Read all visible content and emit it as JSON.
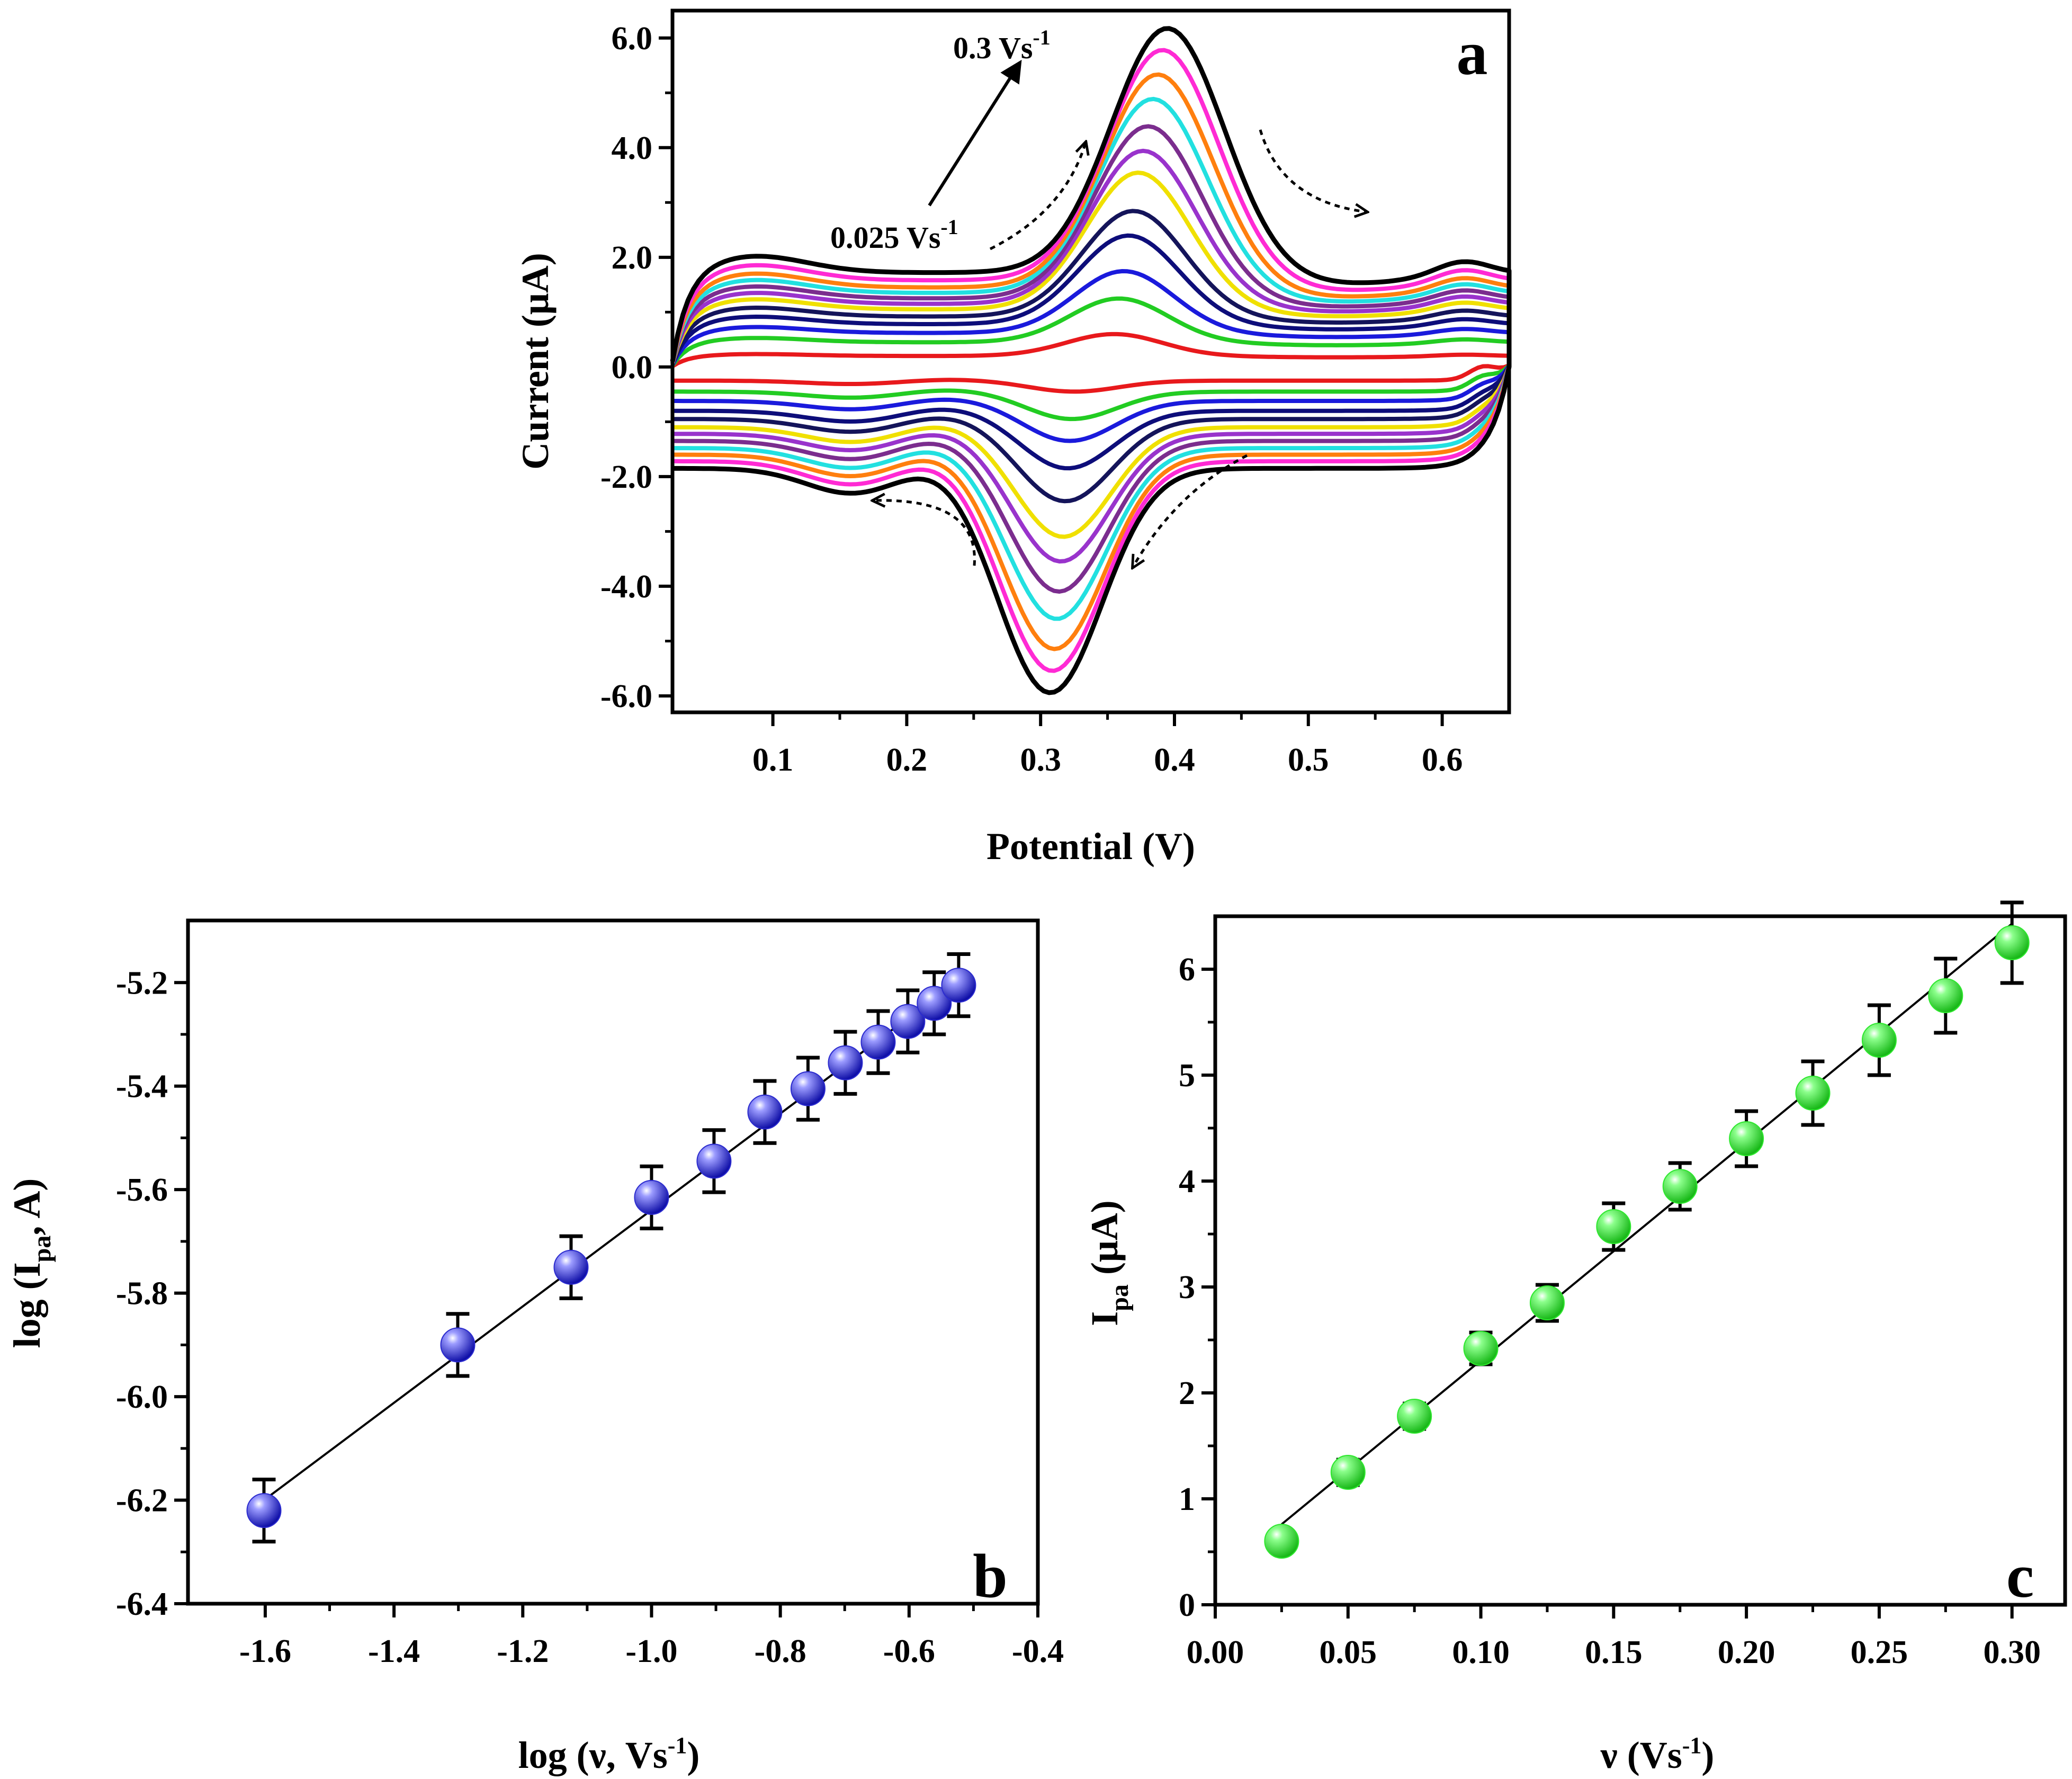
{
  "chart_data": [
    {
      "id": "a",
      "type": "line",
      "panel_label": "a",
      "xlabel": "Potential (V)",
      "ylabel_parts": [
        "Current (",
        "μ",
        "A)"
      ],
      "xlim": [
        0.025,
        0.65
      ],
      "ylim": [
        -6.3,
        6.5
      ],
      "x_ticks": [
        0.1,
        0.2,
        0.3,
        0.4,
        0.5,
        0.6
      ],
      "x_tick_labels": [
        "0.1",
        "0.2",
        "0.3",
        "0.4",
        "0.5",
        "0.6"
      ],
      "y_ticks": [
        -6.0,
        -4.0,
        -2.0,
        0.0,
        2.0,
        4.0,
        6.0
      ],
      "y_tick_labels": [
        "-6.0",
        "-4.0",
        "-2.0",
        "0.0",
        "2.0",
        "4.0",
        "6.0"
      ],
      "annotations": {
        "high_rate": {
          "base": "0.3 Vs",
          "sup": "-1"
        },
        "low_rate": {
          "base": "0.025 Vs",
          "sup": "-1"
        }
      },
      "series": [
        {
          "scan_rate": 0.025,
          "ipa": 0.6,
          "ipc": -0.45,
          "base_ox": 0.2,
          "base_red": -0.25,
          "color": "#e8191c"
        },
        {
          "scan_rate": 0.05,
          "ipa": 1.25,
          "ipc": -0.95,
          "base_ox": 0.45,
          "base_red": -0.45,
          "color": "#22cc22"
        },
        {
          "scan_rate": 0.075,
          "ipa": 1.75,
          "ipc": -1.35,
          "base_ox": 0.62,
          "base_red": -0.62,
          "color": "#1a1adc"
        },
        {
          "scan_rate": 0.1,
          "ipa": 2.4,
          "ipc": -1.85,
          "base_ox": 0.78,
          "base_red": -0.8,
          "color": "#0d0d7a"
        },
        {
          "scan_rate": 0.125,
          "ipa": 2.85,
          "ipc": -2.45,
          "base_ox": 0.92,
          "base_red": -0.95,
          "color": "#14145a"
        },
        {
          "scan_rate": 0.15,
          "ipa": 3.55,
          "ipc": -3.1,
          "base_ox": 1.05,
          "base_red": -1.1,
          "color": "#f0e000"
        },
        {
          "scan_rate": 0.175,
          "ipa": 3.95,
          "ipc": -3.55,
          "base_ox": 1.15,
          "base_red": -1.22,
          "color": "#9933cc"
        },
        {
          "scan_rate": 0.2,
          "ipa": 4.4,
          "ipc": -4.1,
          "base_ox": 1.25,
          "base_red": -1.35,
          "color": "#7b2d8e"
        },
        {
          "scan_rate": 0.225,
          "ipa": 4.9,
          "ipc": -4.6,
          "base_ox": 1.35,
          "base_red": -1.48,
          "color": "#22e0e0"
        },
        {
          "scan_rate": 0.25,
          "ipa": 5.35,
          "ipc": -5.15,
          "base_ox": 1.45,
          "base_red": -1.6,
          "color": "#ff7f0e"
        },
        {
          "scan_rate": 0.275,
          "ipa": 5.8,
          "ipc": -5.55,
          "base_ox": 1.58,
          "base_red": -1.72,
          "color": "#ff2ad4"
        },
        {
          "scan_rate": 0.3,
          "ipa": 6.2,
          "ipc": -5.95,
          "base_ox": 1.72,
          "base_red": -1.85,
          "color": "#000000"
        }
      ]
    },
    {
      "id": "b",
      "type": "scatter",
      "panel_label": "b",
      "xlabel_parts": [
        "log (",
        "ν",
        ", Vs",
        "-1",
        ")"
      ],
      "ylabel_parts": [
        "log (I",
        "pa",
        ", A)"
      ],
      "xlim": [
        -1.72,
        -0.4
      ],
      "ylim": [
        -6.4,
        -5.08
      ],
      "x_ticks": [
        -1.6,
        -1.4,
        -1.2,
        -1.0,
        -0.8,
        -0.6,
        -0.4
      ],
      "x_tick_labels": [
        "-1.6",
        "-1.4",
        "-1.2",
        "-1.0",
        "-0.8",
        "-0.6",
        "-0.4"
      ],
      "y_ticks": [
        -6.4,
        -6.2,
        -6.0,
        -5.8,
        -5.6,
        -5.4,
        -5.2
      ],
      "y_tick_labels": [
        "-6.4",
        "-6.2",
        "-6.0",
        "-5.8",
        "-5.6",
        "-5.4",
        "-5.2"
      ],
      "x": [
        -1.602,
        -1.301,
        -1.125,
        -1.0,
        -0.903,
        -0.824,
        -0.757,
        -0.699,
        -0.648,
        -0.602,
        -0.561,
        -0.523
      ],
      "y": [
        -6.22,
        -5.9,
        -5.75,
        -5.615,
        -5.545,
        -5.45,
        -5.405,
        -5.355,
        -5.315,
        -5.275,
        -5.24,
        -5.205
      ],
      "yerr": 0.06,
      "fit": {
        "x": [
          -1.602,
          -0.523
        ],
        "y": [
          -6.2,
          -5.195
        ]
      },
      "marker_color": "#2b2bcf"
    },
    {
      "id": "c",
      "type": "scatter",
      "panel_label": "c",
      "xlabel_parts": [
        "ν",
        " (Vs",
        "-1",
        ")"
      ],
      "ylabel_parts": [
        "I",
        "pa",
        " (",
        "μ",
        "A)"
      ],
      "xlim": [
        0.0,
        0.32
      ],
      "ylim": [
        0,
        6.5
      ],
      "x_ticks": [
        0.0,
        0.05,
        0.1,
        0.15,
        0.2,
        0.25,
        0.3
      ],
      "x_tick_labels": [
        "0.00",
        "0.05",
        "0.10",
        "0.15",
        "0.20",
        "0.25",
        "0.30"
      ],
      "y_ticks": [
        0,
        1,
        2,
        3,
        4,
        5,
        6
      ],
      "y_tick_labels": [
        "0",
        "1",
        "2",
        "3",
        "4",
        "5",
        "6"
      ],
      "x": [
        0.025,
        0.05,
        0.075,
        0.1,
        0.125,
        0.15,
        0.175,
        0.2,
        0.225,
        0.25,
        0.275,
        0.3
      ],
      "y": [
        0.6,
        1.25,
        1.78,
        2.42,
        2.85,
        3.57,
        3.95,
        4.4,
        4.83,
        5.33,
        5.75,
        6.25
      ],
      "yerr": [
        0.1,
        0.12,
        0.12,
        0.15,
        0.17,
        0.22,
        0.22,
        0.26,
        0.3,
        0.33,
        0.35,
        0.38
      ],
      "fit": {
        "x": [
          0.025,
          0.3
        ],
        "y": [
          0.76,
          6.43
        ]
      },
      "marker_color": "#2ee82e"
    }
  ]
}
